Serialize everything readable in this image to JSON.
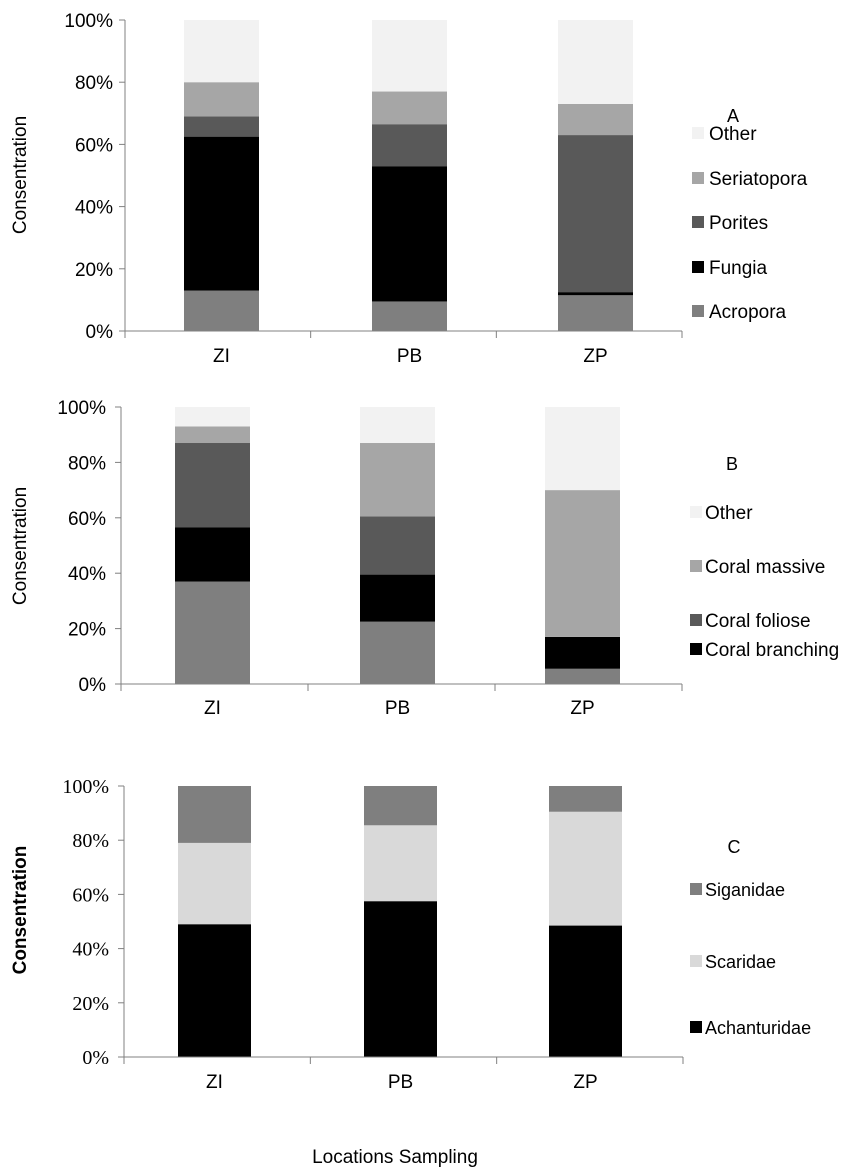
{
  "chart_data": [
    {
      "type": "bar",
      "stacked": true,
      "panel_label": "A",
      "categories": [
        "ZI",
        "PB",
        "ZP"
      ],
      "ylabel": "Consentration",
      "xlabel": "",
      "ylim": [
        0,
        100
      ],
      "yticks": [
        "0%",
        "20%",
        "40%",
        "60%",
        "80%",
        "100%"
      ],
      "legend_position": "right",
      "series": [
        {
          "name": "Acropora",
          "color": "#7f7f7f",
          "values": [
            13,
            9.5,
            11.5
          ]
        },
        {
          "name": "Fungia",
          "color": "#000000",
          "values": [
            49.5,
            43.5,
            1
          ]
        },
        {
          "name": "Porites",
          "color": "#595959",
          "values": [
            6.5,
            13.5,
            50.5
          ]
        },
        {
          "name": "Seriatopora",
          "color": "#a6a6a6",
          "values": [
            11,
            10.5,
            10
          ]
        },
        {
          "name": "Other",
          "color": "#f2f2f2",
          "values": [
            20,
            23,
            27
          ]
        }
      ]
    },
    {
      "type": "bar",
      "stacked": true,
      "panel_label": "B",
      "categories": [
        "ZI",
        "PB",
        "ZP"
      ],
      "ylabel": "Consentration",
      "xlabel": "",
      "ylim": [
        0,
        100
      ],
      "yticks": [
        "0%",
        "20%",
        "40%",
        "60%",
        "80%",
        "100%"
      ],
      "legend_position": "right",
      "series": [
        {
          "name": "",
          "color": "#7f7f7f",
          "values": [
            37,
            22.5,
            5.5
          ]
        },
        {
          "name": "Coral branching",
          "color": "#000000",
          "values": [
            19.5,
            17,
            11.5
          ]
        },
        {
          "name": "Coral foliose",
          "color": "#595959",
          "values": [
            30.5,
            21,
            0
          ]
        },
        {
          "name": "Coral massive",
          "color": "#a6a6a6",
          "values": [
            6,
            26.5,
            53
          ]
        },
        {
          "name": "Other",
          "color": "#f2f2f2",
          "values": [
            7,
            13,
            30
          ]
        }
      ]
    },
    {
      "type": "bar",
      "stacked": true,
      "panel_label": "C",
      "categories": [
        "ZI",
        "PB",
        "ZP"
      ],
      "ylabel": "Consentration",
      "xlabel": "Locations Sampling",
      "ylim": [
        0,
        100
      ],
      "yticks": [
        "0%",
        "20%",
        "40%",
        "60%",
        "80%",
        "100%"
      ],
      "legend_position": "right",
      "series": [
        {
          "name": "Achanturidae",
          "color": "#000000",
          "values": [
            49,
            57.5,
            48.5
          ]
        },
        {
          "name": "Scaridae",
          "color": "#d9d9d9",
          "values": [
            30,
            28,
            42
          ]
        },
        {
          "name": "Siganidae",
          "color": "#7f7f7f",
          "values": [
            21,
            14.5,
            9.5
          ]
        }
      ]
    }
  ]
}
